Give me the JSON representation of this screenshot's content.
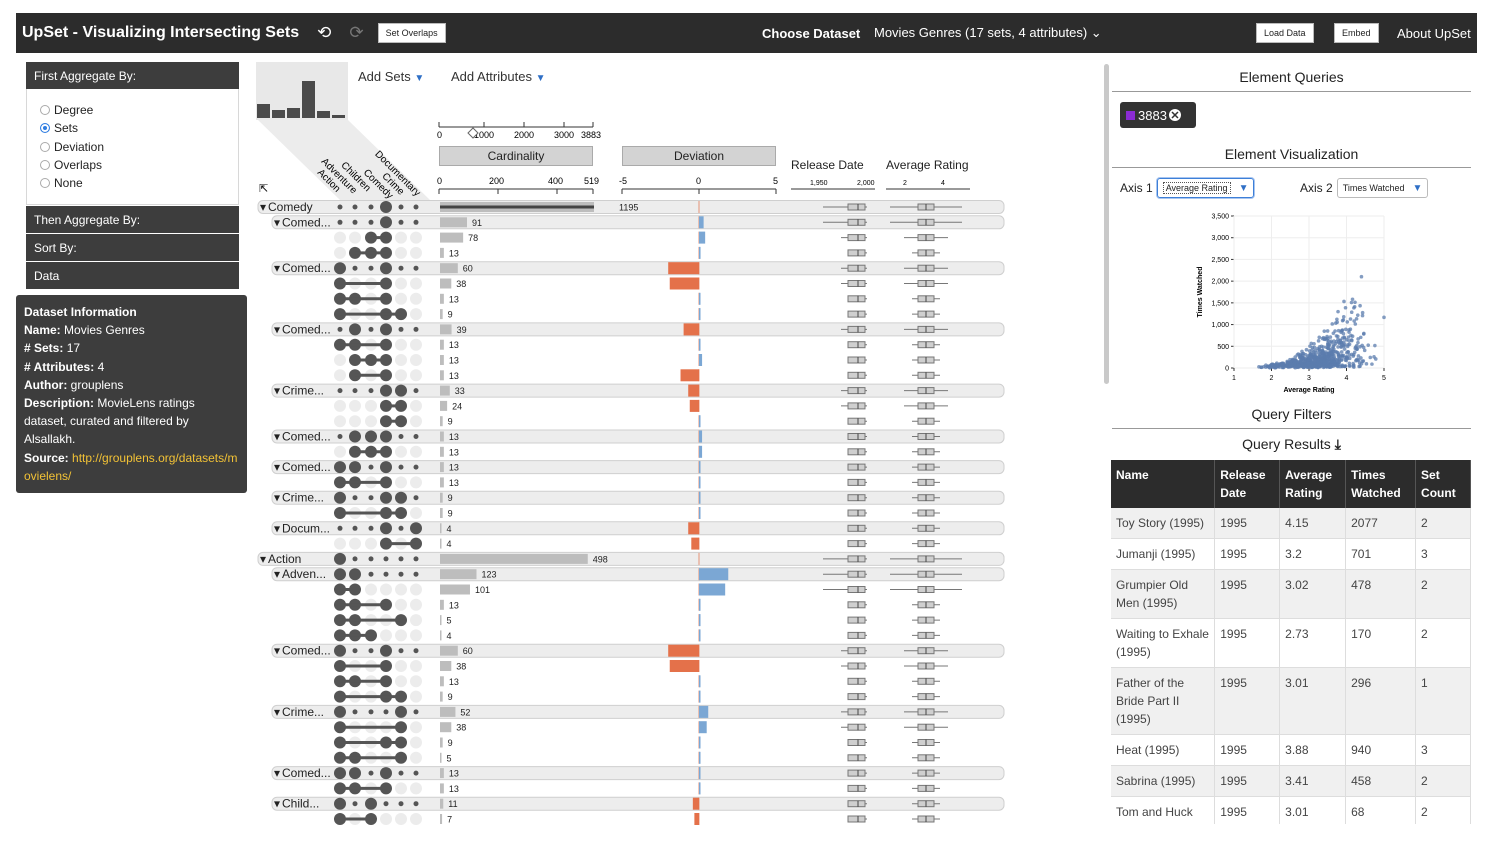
{
  "topbar": {
    "title": "UpSet - Visualizing Intersecting Sets",
    "set_overlaps": "Set Overlaps",
    "choose": "Choose Dataset",
    "dataset": "Movies Genres (17 sets, 4 attributes)",
    "load": "Load Data",
    "embed": "Embed",
    "about": "About UpSet"
  },
  "left": {
    "first_agg": "First Aggregate By:",
    "options": [
      "Degree",
      "Sets",
      "Deviation",
      "Overlaps",
      "None"
    ],
    "selected": "Sets",
    "then_agg": "Then Aggregate By:",
    "sort_by": "Sort By:",
    "data": "Data"
  },
  "dataset_info": {
    "title": "Dataset Information",
    "name_k": "Name:",
    "name_v": "Movies Genres",
    "sets_k": "# Sets:",
    "sets_v": "17",
    "attrs_k": "# Attributes:",
    "attrs_v": "4",
    "author_k": "Author:",
    "author_v": "grouplens",
    "desc_k": "Description:",
    "desc_v": "MovieLens ratings dataset, curated and filtered by Alsallakh.",
    "source_k": "Source:",
    "source_v": "http://grouplens.org/datasets/movielens/"
  },
  "center": {
    "add_sets": "Add Sets",
    "add_attributes": "Add Attributes",
    "cardinality": "Cardinality",
    "deviation": "Deviation",
    "release_date": "Release Date",
    "avg_rating": "Average Rating",
    "card_top_ticks": [
      "0",
      "1000",
      "2000",
      "3000",
      "3883"
    ],
    "card_ticks": [
      "0",
      "200",
      "400",
      "519"
    ],
    "dev_ticks": [
      "-5",
      "0",
      "5"
    ],
    "rel_ticks": [
      "1,950",
      "2,000"
    ],
    "rate_ticks": [
      "2",
      "4"
    ],
    "set_names": [
      "Action",
      "Adventure",
      "Children",
      "Comedy",
      "Crime",
      "Documentary"
    ],
    "rows": [
      {
        "t": "g",
        "l": "Comedy",
        "c": 1195,
        "d": 0,
        "m": [
          0,
          0,
          0,
          1,
          0,
          0
        ],
        "lvl": 0,
        "sel": 1
      },
      {
        "t": "g",
        "l": "Comed...",
        "c": 91,
        "d": 0.3,
        "m": [
          0,
          0,
          0,
          1,
          0,
          0
        ],
        "lvl": 1
      },
      {
        "t": "s",
        "c": 78,
        "d": 0.4,
        "m": [
          0,
          0,
          1,
          1,
          0,
          0
        ]
      },
      {
        "t": "s",
        "c": 13,
        "d": 0.1,
        "m": [
          0,
          1,
          1,
          1,
          0,
          0
        ]
      },
      {
        "t": "g",
        "l": "Comed...",
        "c": 60,
        "d": -2.0,
        "m": [
          1,
          0,
          0,
          1,
          0,
          0
        ],
        "lvl": 1
      },
      {
        "t": "s",
        "c": 38,
        "d": -1.9,
        "m": [
          1,
          0,
          0,
          1,
          0,
          0
        ]
      },
      {
        "t": "s",
        "c": 13,
        "d": 0.05,
        "m": [
          1,
          1,
          0,
          1,
          0,
          0
        ]
      },
      {
        "t": "s",
        "c": 9,
        "d": 0.05,
        "m": [
          1,
          0,
          0,
          1,
          1,
          0
        ]
      },
      {
        "t": "g",
        "l": "Comed...",
        "c": 39,
        "d": -1.0,
        "m": [
          0,
          1,
          0,
          1,
          0,
          0
        ],
        "lvl": 1
      },
      {
        "t": "s",
        "c": 13,
        "d": 0.05,
        "m": [
          1,
          1,
          0,
          1,
          0,
          0
        ]
      },
      {
        "t": "s",
        "c": 13,
        "d": 0.2,
        "m": [
          0,
          1,
          1,
          1,
          0,
          0
        ]
      },
      {
        "t": "s",
        "c": 13,
        "d": -1.2,
        "m": [
          0,
          1,
          0,
          1,
          0,
          0
        ]
      },
      {
        "t": "g",
        "l": "Crime...",
        "c": 33,
        "d": -0.7,
        "m": [
          0,
          0,
          0,
          1,
          1,
          0
        ],
        "lvl": 1
      },
      {
        "t": "s",
        "c": 24,
        "d": -0.6,
        "m": [
          0,
          0,
          0,
          1,
          1,
          0
        ]
      },
      {
        "t": "s",
        "c": 9,
        "d": 0.05,
        "m": [
          0,
          0,
          0,
          1,
          1,
          0
        ]
      },
      {
        "t": "g",
        "l": "Comed...",
        "c": 13,
        "d": 0.2,
        "m": [
          0,
          1,
          1,
          1,
          0,
          0
        ],
        "lvl": 1
      },
      {
        "t": "s",
        "c": 13,
        "d": 0.2,
        "m": [
          0,
          1,
          1,
          1,
          0,
          0
        ]
      },
      {
        "t": "g",
        "l": "Comed...",
        "c": 13,
        "d": 0.05,
        "m": [
          1,
          1,
          0,
          1,
          0,
          0
        ],
        "lvl": 1
      },
      {
        "t": "s",
        "c": 13,
        "d": 0.05,
        "m": [
          1,
          1,
          0,
          1,
          0,
          0
        ]
      },
      {
        "t": "g",
        "l": "Crime...",
        "c": 9,
        "d": 0.05,
        "m": [
          1,
          0,
          0,
          1,
          1,
          0
        ],
        "lvl": 1
      },
      {
        "t": "s",
        "c": 9,
        "d": 0.05,
        "m": [
          1,
          0,
          0,
          1,
          1,
          0
        ]
      },
      {
        "t": "g",
        "l": "Docum...",
        "c": 4,
        "d": -0.7,
        "m": [
          0,
          0,
          0,
          1,
          0,
          1
        ],
        "lvl": 1
      },
      {
        "t": "s",
        "c": 4,
        "d": -0.5,
        "m": [
          0,
          0,
          0,
          1,
          0,
          1
        ]
      },
      {
        "t": "g",
        "l": "Action",
        "c": 498,
        "d": 0,
        "m": [
          1,
          0,
          0,
          0,
          0,
          0
        ],
        "lvl": 0
      },
      {
        "t": "g",
        "l": "Adven...",
        "c": 123,
        "d": 1.9,
        "m": [
          1,
          1,
          0,
          0,
          0,
          0
        ],
        "lvl": 1
      },
      {
        "t": "s",
        "c": 101,
        "d": 1.7,
        "m": [
          1,
          1,
          0,
          0,
          0,
          0
        ]
      },
      {
        "t": "s",
        "c": 13,
        "d": 0.05,
        "m": [
          1,
          1,
          0,
          1,
          0,
          0
        ]
      },
      {
        "t": "s",
        "c": 5,
        "d": 0.05,
        "m": [
          1,
          1,
          0,
          0,
          1,
          0
        ]
      },
      {
        "t": "s",
        "c": 4,
        "d": 0.05,
        "m": [
          1,
          1,
          1,
          0,
          0,
          0
        ]
      },
      {
        "t": "g",
        "l": "Comed...",
        "c": 60,
        "d": -2.0,
        "m": [
          1,
          0,
          0,
          1,
          0,
          0
        ],
        "lvl": 1
      },
      {
        "t": "s",
        "c": 38,
        "d": -1.9,
        "m": [
          1,
          0,
          0,
          1,
          0,
          0
        ]
      },
      {
        "t": "s",
        "c": 13,
        "d": 0.05,
        "m": [
          1,
          1,
          0,
          1,
          0,
          0
        ]
      },
      {
        "t": "s",
        "c": 9,
        "d": 0.05,
        "m": [
          1,
          0,
          0,
          1,
          1,
          0
        ]
      },
      {
        "t": "g",
        "l": "Crime...",
        "c": 52,
        "d": 0.6,
        "m": [
          1,
          0,
          0,
          0,
          1,
          0
        ],
        "lvl": 1
      },
      {
        "t": "s",
        "c": 38,
        "d": 0.5,
        "m": [
          1,
          0,
          0,
          0,
          1,
          0
        ]
      },
      {
        "t": "s",
        "c": 9,
        "d": 0.05,
        "m": [
          1,
          0,
          0,
          1,
          1,
          0
        ]
      },
      {
        "t": "s",
        "c": 5,
        "d": 0.05,
        "m": [
          1,
          1,
          0,
          0,
          1,
          0
        ]
      },
      {
        "t": "g",
        "l": "Comed...",
        "c": 13,
        "d": 0.05,
        "m": [
          1,
          1,
          0,
          1,
          0,
          0
        ],
        "lvl": 1
      },
      {
        "t": "s",
        "c": 13,
        "d": 0.05,
        "m": [
          1,
          1,
          0,
          1,
          0,
          0
        ]
      },
      {
        "t": "g",
        "l": "Child...",
        "c": 11,
        "d": -0.4,
        "m": [
          1,
          0,
          1,
          0,
          0,
          0
        ],
        "lvl": 1
      },
      {
        "t": "s",
        "c": 7,
        "d": -0.3,
        "m": [
          1,
          0,
          1,
          0,
          0,
          0
        ]
      }
    ]
  },
  "right": {
    "element_queries": "Element Queries",
    "chip_value": "3883",
    "chip_color": "#8b2bd4",
    "element_vis": "Element Visualization",
    "axis1_label": "Axis 1",
    "axis1_value": "Average Rating",
    "axis2_label": "Axis 2",
    "axis2_value": "Times Watched",
    "query_filters": "Query Filters",
    "query_results": "Query Results"
  },
  "scatter": {
    "x_label": "Average Rating",
    "y_label": "Times Watched",
    "x_ticks": [
      "1",
      "2",
      "3",
      "4",
      "5"
    ],
    "y_ticks": [
      "0",
      "500",
      "1,000",
      "1,500",
      "2,000",
      "2,500",
      "3,000",
      "3,500"
    ],
    "xlim": [
      1,
      5
    ],
    "ylim": [
      0,
      3500
    ]
  },
  "table": {
    "headers": [
      "Name",
      "Release Date",
      "Average Rating",
      "Times Watched",
      "Set Count"
    ],
    "rows": [
      [
        "Toy Story (1995)",
        "1995",
        "4.15",
        "2077",
        "2"
      ],
      [
        "Jumanji (1995)",
        "1995",
        "3.2",
        "701",
        "3"
      ],
      [
        "Grumpier Old Men (1995)",
        "1995",
        "3.02",
        "478",
        "2"
      ],
      [
        "Waiting to Exhale (1995)",
        "1995",
        "2.73",
        "170",
        "2"
      ],
      [
        "Father of the Bride Part II (1995)",
        "1995",
        "3.01",
        "296",
        "1"
      ],
      [
        "Heat (1995)",
        "1995",
        "3.88",
        "940",
        "3"
      ],
      [
        "Sabrina (1995)",
        "1995",
        "3.41",
        "458",
        "2"
      ],
      [
        "Tom and Huck (1995)",
        "1995",
        "3.01",
        "68",
        "2"
      ]
    ]
  }
}
